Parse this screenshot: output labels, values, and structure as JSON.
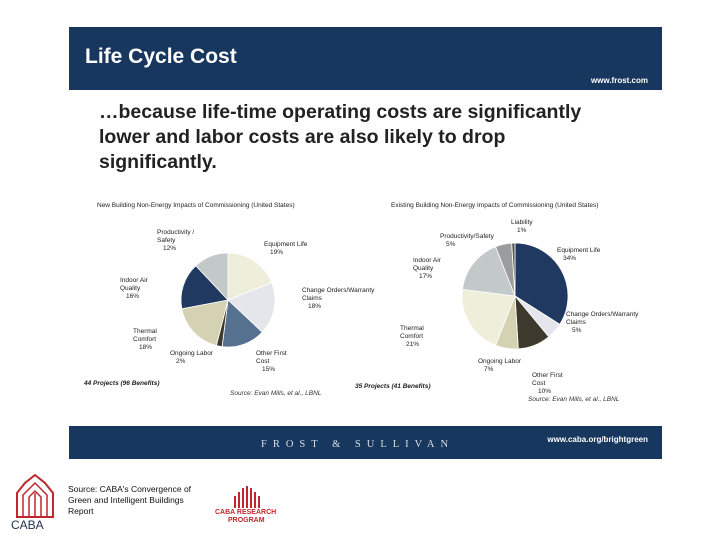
{
  "slide": {
    "title": "Life Cycle Cost",
    "site_url": "www.frost.com",
    "headline": "…because life-time operating costs are significantly lower and labor costs are also likely to drop significantly.",
    "footer_brand": "FROST & SULLIVAN",
    "footer_url": "www.caba.org/brightgreen",
    "source_note": "Source: CABA's Convergence of Green and Intelligent Buildings Report",
    "logo_text": "CABA",
    "research_logo_lines": [
      "CABA RESEARCH",
      "PROGRAM"
    ]
  },
  "chart_data": [
    {
      "type": "pie",
      "title": "New Building Non-Energy Impacts of Commissioning (United States)",
      "slices": [
        {
          "label": "Equipment Life",
          "value": 19,
          "value_label": "19%",
          "color": "#eeeedb"
        },
        {
          "label": "Change Orders/Warranty Claims",
          "value": 18,
          "value_label": "18%",
          "color": "#e4e6eb"
        },
        {
          "label": "Other First Cost",
          "value": 15,
          "value_label": "15%",
          "color": "#56708f"
        },
        {
          "label": "Ongoing Labor",
          "value": 2,
          "value_label": "2%",
          "color": "#3d3a2d"
        },
        {
          "label": "Thermal Comfort",
          "value": 18,
          "value_label": "18%",
          "color": "#d5d2b3"
        },
        {
          "label": "Indoor Air Quality",
          "value": 16,
          "value_label": "16%",
          "color": "#1f3960"
        },
        {
          "label": "Productivity / Safety",
          "value": 12,
          "value_label": "12%",
          "color": "#c3c8c8"
        }
      ],
      "footnote": "44 Projects (96 Benefits)",
      "source": "Source: Evan Mills, et al., LBNL"
    },
    {
      "type": "pie",
      "title": "Existing Building Non-Energy Impacts of Commissioning (United States)",
      "slices": [
        {
          "label": "Equipment Life",
          "value": 34,
          "value_label": "34%",
          "color": "#1f3960"
        },
        {
          "label": "Change Orders/Warranty Claims",
          "value": 5,
          "value_label": "5%",
          "color": "#e4e6eb"
        },
        {
          "label": "Other First Cost",
          "value": 10,
          "value_label": "10%",
          "color": "#3d3a2d"
        },
        {
          "label": "Ongoing Labor",
          "value": 7,
          "value_label": "7%",
          "color": "#d5d2b3"
        },
        {
          "label": "Thermal Comfort",
          "value": 21,
          "value_label": "21%",
          "color": "#eeeedb"
        },
        {
          "label": "Indoor Air Quality",
          "value": 17,
          "value_label": "17%",
          "color": "#c3c8c8"
        },
        {
          "label": "Productivity/Safety",
          "value": 5,
          "value_label": "5%",
          "color": "#9a9c9e"
        },
        {
          "label": "Liability",
          "value": 1,
          "value_label": "1%",
          "color": "#5a5a5a"
        }
      ],
      "footnote": "35 Projects (41 Benefits)",
      "source": "Source: Evan Mills, et al., LBNL"
    }
  ]
}
